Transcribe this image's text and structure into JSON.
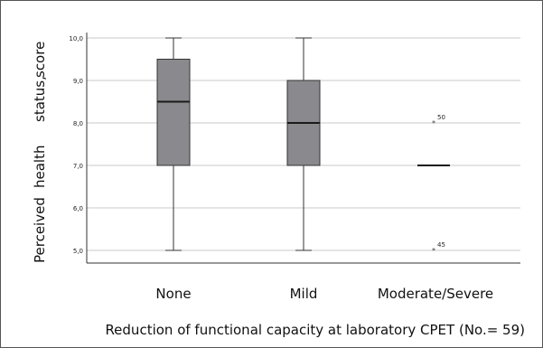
{
  "chart_data": {
    "type": "boxplot",
    "title": "",
    "ylabel_words": [
      "Perceived",
      "health",
      "status,",
      "score"
    ],
    "xlabel": "Reduction of functional capacity at laboratory CPET (No.= 59)",
    "ylim": [
      4.7,
      10.05
    ],
    "yticks": [
      "5,0",
      "6,0",
      "7,0",
      "8,0",
      "9,0",
      "10,0"
    ],
    "ytick_values": [
      5,
      6,
      7,
      8,
      9,
      10
    ],
    "grid": true,
    "categories": [
      "None",
      "Mild",
      "Moderate/Severe"
    ],
    "boxes": [
      {
        "category": "None",
        "min": 5.0,
        "q1": 7.0,
        "median": 8.5,
        "q3": 9.5,
        "max": 10.0
      },
      {
        "category": "Mild",
        "min": 5.0,
        "q1": 7.0,
        "median": 8.0,
        "q3": 9.0,
        "max": 10.0
      },
      {
        "category": "Moderate/Severe",
        "min": 7.0,
        "q1": 7.0,
        "median": 7.0,
        "q3": 7.0,
        "max": 7.0
      }
    ],
    "outliers": [
      {
        "category": "Moderate/Severe",
        "value": 8.0,
        "label": "50"
      },
      {
        "category": "Moderate/Severe",
        "value": 5.0,
        "label": "45"
      }
    ],
    "colors": {
      "box_fill": "#8a8a8e",
      "box_stroke": "#333333",
      "grid": "#c8c8c8"
    }
  }
}
